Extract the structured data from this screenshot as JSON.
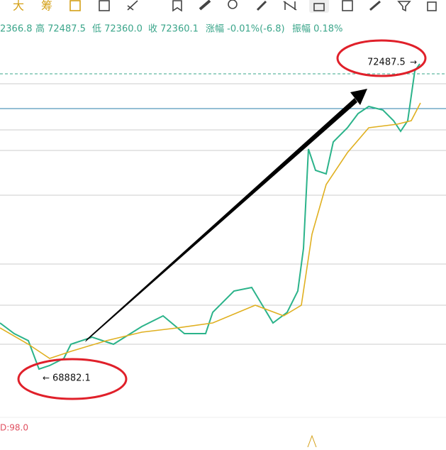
{
  "toolbar": {
    "labels": [
      "大",
      "筹"
    ]
  },
  "header": {
    "open": "2366.8",
    "high": "高 72487.5",
    "low": "低 72360.0",
    "close": "收 72360.1",
    "change": "涨幅 -0.01%(-6.8)",
    "amplitude": "振幅 0.18%"
  },
  "annotations": {
    "max": "72487.5",
    "min": "68882.1",
    "indicator": "D:98.0"
  }
}
